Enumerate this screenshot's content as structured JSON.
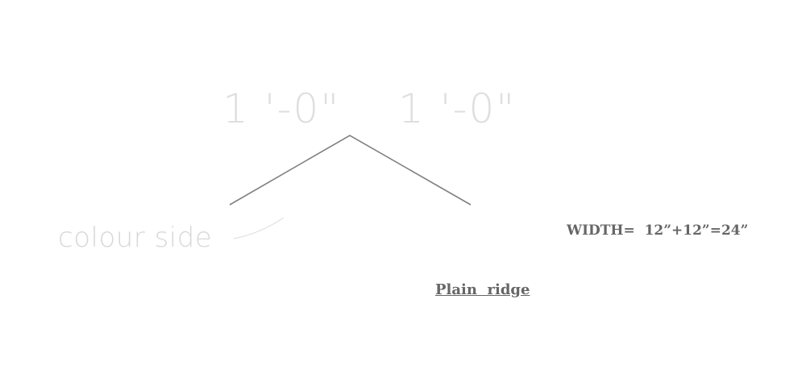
{
  "diagram": {
    "dimension_left": "1 '-0\"",
    "dimension_right": "1 '-0\"",
    "colour_side_label": "colour side",
    "width_formula": "WIDTH=  12”+12”=24”",
    "title": "Plain  ridge"
  },
  "colors": {
    "ridge_line": "#808080",
    "leader_line": "#e2e2e2",
    "dimension_text": "#dedede",
    "annotation_text": "#666666"
  }
}
